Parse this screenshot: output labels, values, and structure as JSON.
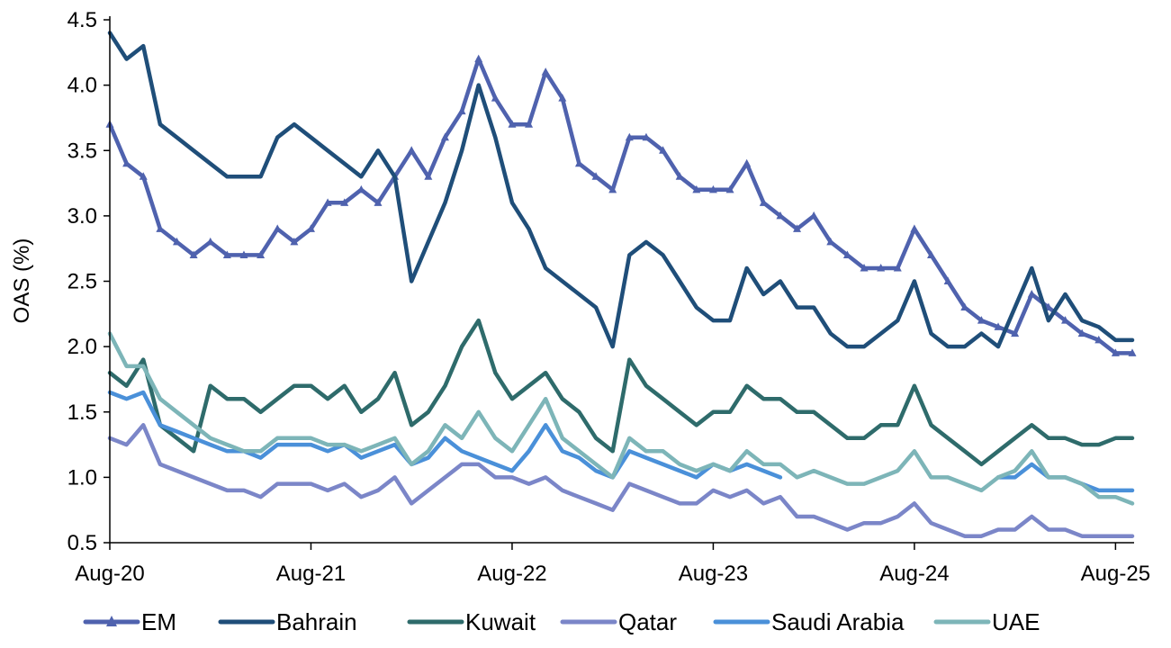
{
  "chart_data": {
    "type": "line",
    "ylabel": "OAS (%)",
    "ylim": [
      0.5,
      4.5
    ],
    "yticks": [
      "0.5",
      "1.0",
      "1.5",
      "2.0",
      "2.5",
      "3.0",
      "3.5",
      "4.0",
      "4.5"
    ],
    "xticks": [
      "Aug-20",
      "Aug-21",
      "Aug-22",
      "Aug-23",
      "Aug-24",
      "Aug-25"
    ],
    "x": [
      "Aug-20",
      "Sep-20",
      "Oct-20",
      "Nov-20",
      "Dec-20",
      "Jan-21",
      "Feb-21",
      "Mar-21",
      "Apr-21",
      "May-21",
      "Jun-21",
      "Jul-21",
      "Aug-21",
      "Sep-21",
      "Oct-21",
      "Nov-21",
      "Dec-21",
      "Jan-22",
      "Feb-22",
      "Mar-22",
      "Apr-22",
      "May-22",
      "Jun-22",
      "Jul-22",
      "Aug-22",
      "Sep-22",
      "Oct-22",
      "Nov-22",
      "Dec-22",
      "Jan-23",
      "Feb-23",
      "Mar-23",
      "Apr-23",
      "May-23",
      "Jun-23",
      "Jul-23",
      "Aug-23",
      "Sep-23",
      "Oct-23",
      "Nov-23",
      "Dec-23",
      "Jan-24",
      "Feb-24",
      "Mar-24",
      "Apr-24",
      "May-24",
      "Jun-24",
      "Jul-24",
      "Aug-24",
      "Sep-24",
      "Oct-24",
      "Nov-24",
      "Dec-24",
      "Jan-25",
      "Feb-25",
      "Mar-25",
      "Apr-25",
      "May-25",
      "Jun-25",
      "Jul-25",
      "Aug-25",
      "Sep-25"
    ],
    "legend_position": "bottom",
    "grid": false,
    "series": [
      {
        "name": "EM",
        "color": "#4F62AE",
        "marker": "triangle",
        "values": [
          3.7,
          3.4,
          3.3,
          2.9,
          2.8,
          2.7,
          2.8,
          2.7,
          2.7,
          2.7,
          2.9,
          2.8,
          2.9,
          3.1,
          3.1,
          3.2,
          3.1,
          3.3,
          3.5,
          3.3,
          3.6,
          3.8,
          4.2,
          3.9,
          3.7,
          3.7,
          4.1,
          3.9,
          3.4,
          3.3,
          3.2,
          3.6,
          3.6,
          3.5,
          3.3,
          3.2,
          3.2,
          3.2,
          3.4,
          3.1,
          3.0,
          2.9,
          3.0,
          2.8,
          2.7,
          2.6,
          2.6,
          2.6,
          2.9,
          2.7,
          2.5,
          2.3,
          2.2,
          2.15,
          2.1,
          2.4,
          2.3,
          2.2,
          2.1,
          2.05,
          1.95,
          1.95
        ]
      },
      {
        "name": "Bahrain",
        "color": "#1F4E79",
        "marker": "none",
        "values": [
          4.4,
          4.2,
          4.3,
          3.7,
          3.6,
          3.5,
          3.4,
          3.3,
          3.3,
          3.3,
          3.6,
          3.7,
          3.6,
          3.5,
          3.4,
          3.3,
          3.5,
          3.3,
          2.5,
          2.8,
          3.1,
          3.5,
          4.0,
          3.6,
          3.1,
          2.9,
          2.6,
          2.5,
          2.4,
          2.3,
          2.0,
          2.7,
          2.8,
          2.7,
          2.5,
          2.3,
          2.2,
          2.2,
          2.6,
          2.4,
          2.5,
          2.3,
          2.3,
          2.1,
          2.0,
          2.0,
          2.1,
          2.2,
          2.5,
          2.1,
          2.0,
          2.0,
          2.1,
          2.0,
          2.3,
          2.6,
          2.2,
          2.4,
          2.2,
          2.15,
          2.05,
          2.05
        ]
      },
      {
        "name": "Kuwait",
        "color": "#2E6B6B",
        "marker": "none",
        "values": [
          1.8,
          1.7,
          1.9,
          1.4,
          1.3,
          1.2,
          1.7,
          1.6,
          1.6,
          1.5,
          1.6,
          1.7,
          1.7,
          1.6,
          1.7,
          1.5,
          1.6,
          1.8,
          1.4,
          1.5,
          1.7,
          2.0,
          2.2,
          1.8,
          1.6,
          1.7,
          1.8,
          1.6,
          1.5,
          1.3,
          1.2,
          1.9,
          1.7,
          1.6,
          1.5,
          1.4,
          1.5,
          1.5,
          1.7,
          1.6,
          1.6,
          1.5,
          1.5,
          1.4,
          1.3,
          1.3,
          1.4,
          1.4,
          1.7,
          1.4,
          1.3,
          1.2,
          1.1,
          1.2,
          1.3,
          1.4,
          1.3,
          1.3,
          1.25,
          1.25,
          1.3,
          1.3
        ]
      },
      {
        "name": "Qatar",
        "color": "#7B86C8",
        "marker": "none",
        "values": [
          1.3,
          1.25,
          1.4,
          1.1,
          1.05,
          1.0,
          0.95,
          0.9,
          0.9,
          0.85,
          0.95,
          0.95,
          0.95,
          0.9,
          0.95,
          0.85,
          0.9,
          1.0,
          0.8,
          0.9,
          1.0,
          1.1,
          1.1,
          1.0,
          1.0,
          0.95,
          1.0,
          0.9,
          0.85,
          0.8,
          0.75,
          0.95,
          0.9,
          0.85,
          0.8,
          0.8,
          0.9,
          0.85,
          0.9,
          0.8,
          0.85,
          0.7,
          0.7,
          0.65,
          0.6,
          0.65,
          0.65,
          0.7,
          0.8,
          0.65,
          0.6,
          0.55,
          0.55,
          0.6,
          0.6,
          0.7,
          0.6,
          0.6,
          0.55,
          0.55,
          0.55,
          0.55
        ]
      },
      {
        "name": "Saudi Arabia",
        "color": "#4A90D9",
        "marker": "none",
        "values": [
          1.65,
          1.6,
          1.65,
          1.4,
          1.35,
          1.3,
          1.25,
          1.2,
          1.2,
          1.15,
          1.25,
          1.25,
          1.25,
          1.2,
          1.25,
          1.15,
          1.2,
          1.25,
          1.1,
          1.15,
          1.3,
          1.2,
          1.15,
          1.1,
          1.05,
          1.2,
          1.4,
          1.2,
          1.15,
          1.05,
          1.0,
          1.2,
          1.15,
          1.1,
          1.05,
          1.0,
          1.1,
          1.05,
          1.1,
          1.05,
          1.0,
          null,
          null,
          null,
          null,
          null,
          null,
          null,
          null,
          null,
          null,
          null,
          null,
          1.0,
          1.0,
          1.1,
          1.0,
          1.0,
          0.95,
          0.9,
          0.9,
          0.9
        ]
      },
      {
        "name": "UAE",
        "color": "#7DB5B8",
        "marker": "none",
        "values": [
          2.1,
          1.85,
          1.85,
          1.6,
          1.5,
          1.4,
          1.3,
          1.25,
          1.2,
          1.2,
          1.3,
          1.3,
          1.3,
          1.25,
          1.25,
          1.2,
          1.25,
          1.3,
          1.1,
          1.2,
          1.4,
          1.3,
          1.5,
          1.3,
          1.2,
          1.4,
          1.6,
          1.3,
          1.2,
          1.1,
          1.0,
          1.3,
          1.2,
          1.2,
          1.1,
          1.05,
          1.1,
          1.05,
          1.2,
          1.1,
          1.1,
          1.0,
          1.05,
          1.0,
          0.95,
          0.95,
          1.0,
          1.05,
          1.2,
          1.0,
          1.0,
          0.95,
          0.9,
          1.0,
          1.05,
          1.2,
          1.0,
          1.0,
          0.95,
          0.85,
          0.85,
          0.8
        ]
      }
    ]
  }
}
